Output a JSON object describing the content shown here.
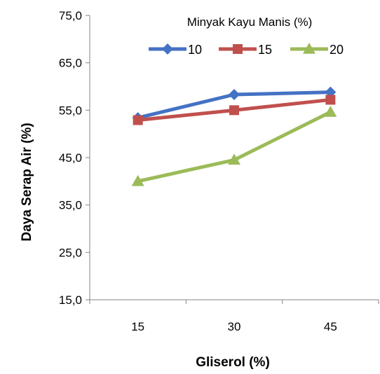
{
  "chart_data": {
    "type": "line",
    "title": "",
    "xlabel": "Gliserol (%)",
    "ylabel": "Daya Serap Air  (%)",
    "categories": [
      "15",
      "30",
      "45"
    ],
    "ylim": [
      15,
      75
    ],
    "y_ticks": [
      "15,0",
      "25,0",
      "35,0",
      "45,0",
      "55,0",
      "65,0",
      "75,0"
    ],
    "grid": false,
    "legend": {
      "title": "Minyak Kayu Manis (%)",
      "placement": "top-right"
    },
    "series": [
      {
        "name": "10",
        "values": [
          53.4,
          58.3,
          58.8
        ],
        "color": "#4472C4",
        "marker": "diamond"
      },
      {
        "name": "15",
        "values": [
          52.9,
          55.0,
          57.2
        ],
        "color": "#C0504D",
        "marker": "square"
      },
      {
        "name": "20",
        "values": [
          40.0,
          44.5,
          54.6
        ],
        "color": "#9BBB59",
        "marker": "triangle"
      }
    ]
  }
}
